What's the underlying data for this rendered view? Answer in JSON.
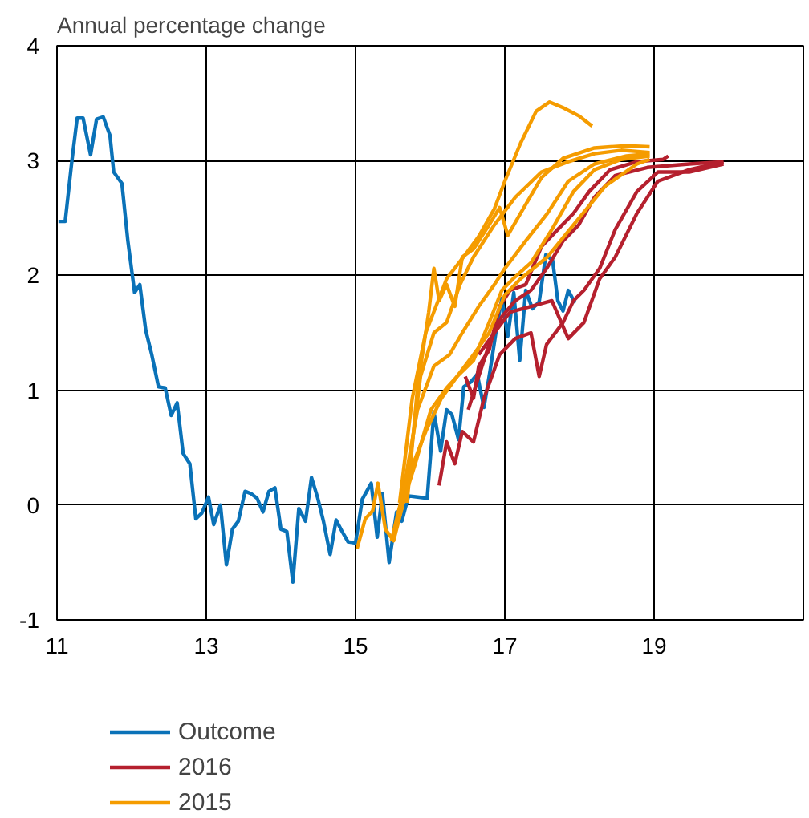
{
  "chart_data": {
    "type": "line",
    "ylabel": "Annual percentage change",
    "xlim": [
      11,
      21
    ],
    "xticks": [
      11,
      13,
      15,
      17,
      19
    ],
    "ylim": [
      -1,
      4
    ],
    "yticks": [
      -1,
      0,
      1,
      2,
      3,
      4
    ],
    "grid": true,
    "legend": "bottom",
    "line_style": "solid",
    "marker": "none",
    "series": [
      {
        "name": "Outcome",
        "color": "#0a72b8",
        "x": [
          11.02,
          11.11,
          11.2,
          11.27,
          11.35,
          11.45,
          11.53,
          11.62,
          11.71,
          11.76,
          11.87,
          11.95,
          12.04,
          12.11,
          12.19,
          12.27,
          12.36,
          12.45,
          12.53,
          12.61,
          12.69,
          12.78,
          12.86,
          12.94,
          13.03,
          13.1,
          13.19,
          13.27,
          13.35,
          13.43,
          13.52,
          13.6,
          13.68,
          13.76,
          13.84,
          13.92,
          14.0,
          14.08,
          14.16,
          14.24,
          14.33,
          14.41,
          14.49,
          14.57,
          14.66,
          14.74,
          14.82,
          14.9,
          15.0,
          15.09,
          15.21,
          15.29,
          15.36,
          15.45,
          15.55,
          15.62,
          15.71,
          15.83,
          15.96,
          16.05,
          16.14,
          16.22,
          16.29,
          16.38,
          16.45,
          16.54,
          16.63,
          16.72,
          16.8,
          16.88,
          16.96,
          17.04,
          17.12,
          17.2,
          17.28,
          17.37,
          17.46,
          17.55,
          17.64,
          17.71,
          17.78,
          17.85,
          17.94
        ],
        "values": [
          2.47,
          2.47,
          3.0,
          3.37,
          3.37,
          3.05,
          3.36,
          3.38,
          3.22,
          2.9,
          2.8,
          2.3,
          1.85,
          1.92,
          1.52,
          1.31,
          1.03,
          1.02,
          0.78,
          0.89,
          0.45,
          0.36,
          -0.12,
          -0.07,
          0.07,
          -0.17,
          0,
          -0.52,
          -0.21,
          -0.14,
          0.12,
          0.1,
          0.06,
          -0.06,
          0.12,
          0.15,
          -0.21,
          -0.23,
          -0.67,
          -0.03,
          -0.14,
          0.24,
          0.07,
          -0.14,
          -0.43,
          -0.13,
          -0.23,
          -0.32,
          -0.33,
          0.05,
          0.19,
          -0.28,
          0.1,
          -0.5,
          -0.06,
          -0.14,
          0.08,
          0.07,
          0.06,
          0.81,
          0.47,
          0.83,
          0.79,
          0.57,
          1.03,
          1.07,
          1.14,
          0.85,
          1.16,
          1.5,
          1.8,
          1.47,
          1.85,
          1.26,
          1.87,
          1.71,
          1.77,
          2.18,
          2.13,
          1.78,
          1.69,
          1.87,
          1.76
        ]
      },
      {
        "name": "2016",
        "color": "#b5202e",
        "x": [
          16.47,
          16.58,
          16.65,
          16.79,
          16.93,
          17.07,
          17.28,
          17.49,
          17.71,
          17.92,
          18.13,
          18.41,
          18.77,
          19.12,
          19.19
        ],
        "values": [
          1.12,
          0.93,
          1.21,
          1.35,
          1.73,
          1.87,
          1.92,
          2.25,
          2.4,
          2.54,
          2.73,
          2.92,
          2.99,
          3.01,
          3.04
        ]
      },
      {
        "color": "#b5202e",
        "x": [
          16.51,
          16.65,
          16.79,
          16.96,
          17.14,
          17.35,
          17.56,
          17.78,
          17.99,
          18.2,
          18.48,
          18.91,
          19.47,
          19.93
        ],
        "values": [
          0.83,
          1.12,
          1.4,
          1.64,
          1.78,
          1.87,
          2.06,
          2.3,
          2.44,
          2.68,
          2.87,
          2.94,
          2.97,
          2.99
        ]
      },
      {
        "color": "#b5202e",
        "x": [
          16.12,
          16.22,
          16.33,
          16.43,
          16.58,
          16.72,
          16.93,
          17.14,
          17.35,
          17.46,
          17.56,
          17.78,
          17.92,
          18.06,
          18.27,
          18.48,
          18.77,
          19.05,
          19.47,
          19.93
        ],
        "values": [
          0.17,
          0.55,
          0.36,
          0.64,
          0.55,
          0.93,
          1.31,
          1.45,
          1.5,
          1.12,
          1.4,
          1.59,
          1.78,
          1.87,
          2.06,
          2.4,
          2.73,
          2.9,
          2.9,
          2.97
        ]
      },
      {
        "color": "#b5202e",
        "x": [
          16.65,
          16.86,
          17.07,
          17.35,
          17.63,
          17.85,
          18.06,
          18.27,
          18.48,
          18.77,
          19.05,
          19.47,
          19.93
        ],
        "values": [
          1.31,
          1.5,
          1.68,
          1.73,
          1.78,
          1.45,
          1.59,
          1.97,
          2.16,
          2.54,
          2.82,
          2.92,
          2.99
        ]
      },
      {
        "name": "2015",
        "color": "#f59c00",
        "x": [
          15.59,
          15.76,
          15.94,
          16.22,
          16.47,
          16.65,
          16.86,
          17.0,
          17.21,
          17.42,
          17.6,
          17.78,
          17.99,
          18.17
        ],
        "values": [
          0.02,
          0.93,
          1.5,
          1.97,
          2.18,
          2.34,
          2.58,
          2.82,
          3.15,
          3.43,
          3.51,
          3.46,
          3.39,
          3.3
        ]
      },
      {
        "color": "#f59c00",
        "x": [
          15.69,
          15.83,
          15.98,
          16.05,
          16.12,
          16.22,
          16.33,
          16.43,
          16.58,
          16.79,
          16.93,
          17.04,
          17.21,
          17.49,
          17.78,
          18.2,
          18.63,
          18.94
        ],
        "values": [
          0.02,
          1.02,
          1.68,
          2.06,
          1.78,
          1.92,
          1.73,
          2.16,
          2.23,
          2.44,
          2.59,
          2.35,
          2.54,
          2.85,
          3.02,
          3.11,
          3.13,
          3.12
        ]
      },
      {
        "color": "#f59c00",
        "x": [
          15.66,
          15.87,
          16.05,
          16.22,
          16.4,
          16.58,
          16.86,
          17.14,
          17.49,
          17.85,
          18.2,
          18.56,
          18.94
        ],
        "values": [
          0.02,
          1.12,
          1.5,
          1.59,
          1.92,
          2.16,
          2.44,
          2.68,
          2.9,
          2.99,
          3.06,
          3.09,
          3.07
        ]
      },
      {
        "color": "#f59c00",
        "x": [
          15.59,
          15.83,
          16.05,
          16.26,
          16.43,
          16.65,
          16.86,
          17.0,
          17.28,
          17.57,
          17.85,
          18.2,
          18.63,
          18.94
        ],
        "values": [
          -0.07,
          0.83,
          1.21,
          1.31,
          1.5,
          1.73,
          1.92,
          2.06,
          2.3,
          2.54,
          2.82,
          2.97,
          3.04,
          3.06
        ]
      },
      {
        "color": "#f59c00",
        "x": [
          15.48,
          15.66,
          15.94,
          16.15,
          16.36,
          16.58,
          16.79,
          16.96,
          17.11,
          17.35,
          17.63,
          17.92,
          18.2,
          18.56,
          18.94
        ],
        "values": [
          -0.31,
          0.17,
          0.64,
          0.93,
          1.12,
          1.26,
          1.59,
          1.87,
          1.97,
          2.11,
          2.4,
          2.73,
          2.92,
          3.01,
          3.04
        ]
      },
      {
        "color": "#f59c00",
        "x": [
          15.02,
          15.13,
          15.23,
          15.3,
          15.4,
          15.51,
          15.66,
          15.8,
          16.01,
          16.22,
          16.36,
          16.58,
          16.79,
          17.0,
          17.21,
          17.57,
          17.92,
          18.35,
          18.77,
          18.94
        ],
        "values": [
          -0.38,
          -0.12,
          -0.05,
          0.19,
          -0.21,
          -0.31,
          0.07,
          0.36,
          0.83,
          1.02,
          1.12,
          1.31,
          1.5,
          1.83,
          1.97,
          2.16,
          2.44,
          2.78,
          2.97,
          3.01
        ]
      }
    ]
  }
}
